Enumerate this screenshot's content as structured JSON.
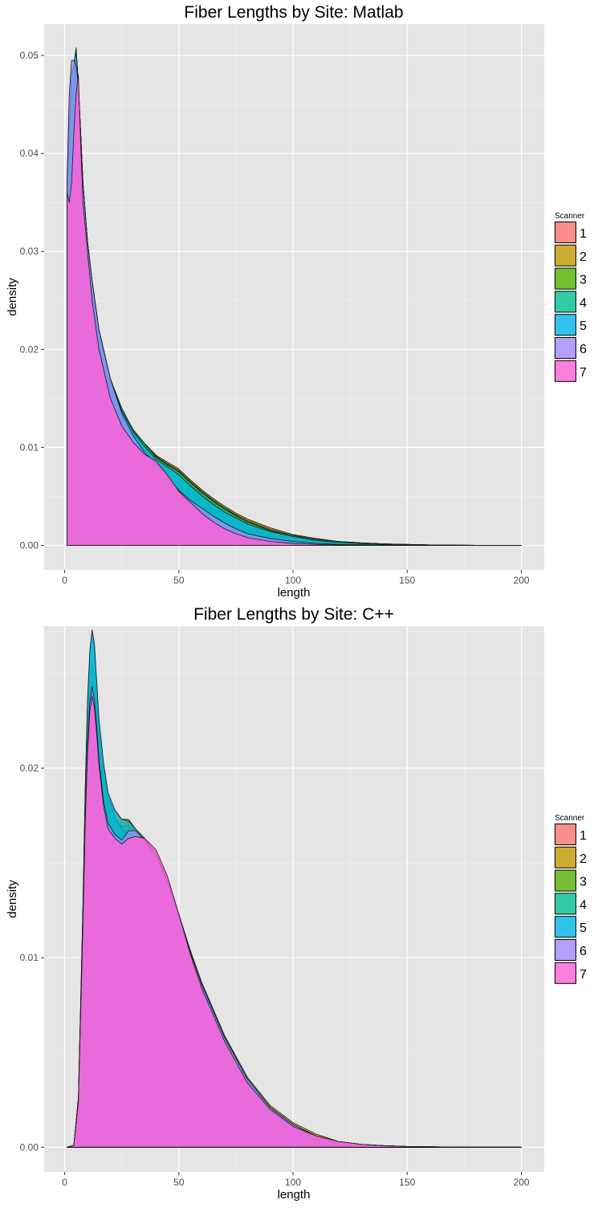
{
  "chart_data": [
    {
      "type": "area",
      "title": "Fiber Lengths by Site: Matlab",
      "xlabel": "length",
      "ylabel": "density",
      "xlim": [
        -9,
        210
      ],
      "ylim": [
        -0.0025,
        0.0532
      ],
      "xticks": [
        0,
        50,
        100,
        150,
        200
      ],
      "xtick_labels": [
        "0",
        "50",
        "100",
        "150",
        "200"
      ],
      "yticks": [
        0.0,
        0.01,
        0.02,
        0.03,
        0.04,
        0.05
      ],
      "ytick_labels": [
        "0.00",
        "0.01",
        "0.02",
        "0.03",
        "0.04",
        "0.05"
      ],
      "grid": true,
      "legend": {
        "title": "Scanner",
        "position": "right"
      },
      "x": [
        1,
        2,
        3,
        4,
        5,
        6,
        7,
        8,
        10,
        12,
        15,
        20,
        25,
        30,
        35,
        40,
        45,
        50,
        55,
        60,
        65,
        70,
        75,
        80,
        90,
        100,
        110,
        120,
        130,
        140,
        150,
        160,
        180,
        200
      ],
      "series": [
        {
          "name": "1",
          "color": "#F8766D",
          "values": [
            0.035,
            0.043,
            0.048,
            0.049,
            0.0505,
            0.047,
            0.042,
            0.037,
            0.031,
            0.027,
            0.022,
            0.017,
            0.0138,
            0.0118,
            0.0104,
            0.0092,
            0.0084,
            0.0077,
            0.0066,
            0.0056,
            0.0047,
            0.0039,
            0.0032,
            0.0026,
            0.0017,
            0.0011,
            0.0007,
            0.0004,
            0.00025,
            0.00015,
            0.0001,
            5e-05,
            1e-05,
            0.0
          ]
        },
        {
          "name": "2",
          "color": "#C49A00",
          "values": [
            0.035,
            0.043,
            0.048,
            0.049,
            0.0508,
            0.047,
            0.042,
            0.037,
            0.031,
            0.027,
            0.022,
            0.017,
            0.0138,
            0.0118,
            0.0104,
            0.0092,
            0.0085,
            0.0078,
            0.0067,
            0.0057,
            0.0048,
            0.004,
            0.0033,
            0.0027,
            0.0018,
            0.0011,
            0.0007,
            0.0004,
            0.00025,
            0.00015,
            0.0001,
            5e-05,
            1e-05,
            0.0
          ]
        },
        {
          "name": "3",
          "color": "#53B400",
          "values": [
            0.035,
            0.043,
            0.048,
            0.049,
            0.0505,
            0.047,
            0.042,
            0.037,
            0.031,
            0.027,
            0.022,
            0.017,
            0.0137,
            0.0117,
            0.0103,
            0.0091,
            0.0083,
            0.0076,
            0.0065,
            0.0055,
            0.0046,
            0.0038,
            0.0031,
            0.0025,
            0.0016,
            0.001,
            0.0006,
            0.0004,
            0.00025,
            0.00015,
            0.0001,
            5e-05,
            1e-05,
            0.0
          ]
        },
        {
          "name": "4",
          "color": "#00C094",
          "values": [
            0.035,
            0.043,
            0.048,
            0.049,
            0.0505,
            0.047,
            0.042,
            0.037,
            0.031,
            0.027,
            0.022,
            0.017,
            0.014,
            0.0118,
            0.0104,
            0.009,
            0.0082,
            0.0075,
            0.0064,
            0.0054,
            0.0045,
            0.0037,
            0.003,
            0.0024,
            0.0015,
            0.001,
            0.0006,
            0.0004,
            0.00025,
            0.00015,
            0.0001,
            5e-05,
            1e-05,
            0.0
          ]
        },
        {
          "name": "5",
          "color": "#00B6EB",
          "values": [
            0.035,
            0.043,
            0.048,
            0.049,
            0.0505,
            0.047,
            0.042,
            0.037,
            0.031,
            0.027,
            0.022,
            0.017,
            0.0137,
            0.0116,
            0.0101,
            0.0088,
            0.008,
            0.0072,
            0.0061,
            0.0051,
            0.0042,
            0.0034,
            0.0028,
            0.0022,
            0.0014,
            0.0009,
            0.0005,
            0.0003,
            0.0002,
            0.0001,
            7e-05,
            4e-05,
            1e-05,
            0.0
          ]
        },
        {
          "name": "6",
          "color": "#A58AFF",
          "values": [
            0.037,
            0.046,
            0.0495,
            0.0495,
            0.049,
            0.047,
            0.042,
            0.037,
            0.031,
            0.027,
            0.022,
            0.017,
            0.0135,
            0.0112,
            0.0095,
            0.0083,
            0.007,
            0.0056,
            0.0046,
            0.0038,
            0.003,
            0.0023,
            0.0017,
            0.0012,
            0.0007,
            0.0004,
            0.0002,
            0.0001,
            7e-05,
            4e-05,
            2e-05,
            1e-05,
            0.0,
            0.0
          ]
        },
        {
          "name": "7",
          "color": "#FB61D7",
          "values": [
            0.036,
            0.035,
            0.037,
            0.042,
            0.046,
            0.048,
            0.041,
            0.035,
            0.03,
            0.025,
            0.02,
            0.015,
            0.0122,
            0.0105,
            0.0093,
            0.0086,
            0.0072,
            0.0055,
            0.0044,
            0.0033,
            0.0024,
            0.0017,
            0.0012,
            0.0008,
            0.0004,
            0.0002,
            0.0001,
            5e-05,
            2e-05,
            1e-05,
            0.0,
            0.0,
            0.0,
            0.0
          ]
        }
      ]
    },
    {
      "type": "area",
      "title": "Fiber Lengths by Site: C++",
      "xlabel": "length",
      "ylabel": "density",
      "xlim": [
        -9,
        210
      ],
      "ylim": [
        -0.0013,
        0.0275
      ],
      "xticks": [
        0,
        50,
        100,
        150,
        200
      ],
      "xtick_labels": [
        "0",
        "50",
        "100",
        "150",
        "200"
      ],
      "yticks": [
        0.0,
        0.01,
        0.02
      ],
      "ytick_labels": [
        "0.00",
        "0.01",
        "0.02"
      ],
      "grid": true,
      "legend": {
        "title": "Scanner",
        "position": "right"
      },
      "x": [
        1,
        4,
        6,
        8,
        9,
        10,
        11,
        12,
        13,
        14,
        15,
        17,
        19,
        22,
        25,
        28,
        31,
        35,
        40,
        45,
        50,
        55,
        60,
        70,
        80,
        90,
        100,
        110,
        120,
        130,
        140,
        150,
        160,
        180,
        200
      ],
      "series": [
        {
          "name": "1",
          "color": "#F8766D",
          "values": [
            0,
            0.0001,
            0.0025,
            0.012,
            0.017,
            0.021,
            0.0235,
            0.0241,
            0.0236,
            0.0225,
            0.021,
            0.0193,
            0.018,
            0.0172,
            0.017,
            0.0172,
            0.0168,
            0.0163,
            0.0155,
            0.014,
            0.0122,
            0.0103,
            0.0086,
            0.0058,
            0.0036,
            0.0021,
            0.0012,
            0.0006,
            0.0003,
            0.00015,
            8e-05,
            4e-05,
            2e-05,
            0.0,
            0.0
          ]
        },
        {
          "name": "2",
          "color": "#C49A00",
          "values": [
            0,
            0.0001,
            0.0026,
            0.0125,
            0.0185,
            0.0225,
            0.0248,
            0.0255,
            0.025,
            0.0235,
            0.0218,
            0.0198,
            0.0185,
            0.0177,
            0.0173,
            0.0173,
            0.0168,
            0.0163,
            0.0155,
            0.0141,
            0.0123,
            0.0104,
            0.0087,
            0.0059,
            0.0037,
            0.0022,
            0.0013,
            0.0007,
            0.0003,
            0.00015,
            8e-05,
            4e-05,
            2e-05,
            0.0,
            0.0
          ]
        },
        {
          "name": "3",
          "color": "#53B400",
          "values": [
            0,
            0.0001,
            0.0025,
            0.012,
            0.0175,
            0.0215,
            0.024,
            0.0245,
            0.024,
            0.0228,
            0.0212,
            0.0194,
            0.018,
            0.0172,
            0.0169,
            0.017,
            0.0167,
            0.0162,
            0.0154,
            0.014,
            0.0122,
            0.0103,
            0.0086,
            0.0058,
            0.0036,
            0.0021,
            0.0012,
            0.0006,
            0.0003,
            0.00015,
            8e-05,
            4e-05,
            2e-05,
            0.0,
            0.0
          ]
        },
        {
          "name": "4",
          "color": "#00C094",
          "values": [
            0,
            0.0001,
            0.0026,
            0.0128,
            0.019,
            0.0235,
            0.026,
            0.0272,
            0.0265,
            0.0245,
            0.0225,
            0.0202,
            0.0185,
            0.0174,
            0.0168,
            0.0165,
            0.0164,
            0.0161,
            0.0154,
            0.014,
            0.0122,
            0.0103,
            0.0086,
            0.0058,
            0.0036,
            0.0021,
            0.0012,
            0.0006,
            0.0003,
            0.00015,
            8e-05,
            4e-05,
            2e-05,
            0.0,
            0.0
          ]
        },
        {
          "name": "5",
          "color": "#00B6EB",
          "values": [
            0,
            0.0001,
            0.0026,
            0.0128,
            0.019,
            0.0236,
            0.0262,
            0.0273,
            0.0266,
            0.0246,
            0.0226,
            0.0203,
            0.0187,
            0.0178,
            0.0173,
            0.0172,
            0.0168,
            0.0163,
            0.0155,
            0.014,
            0.0122,
            0.0103,
            0.0086,
            0.0058,
            0.0036,
            0.0021,
            0.0012,
            0.0006,
            0.0003,
            0.00015,
            8e-05,
            4e-05,
            2e-05,
            0.0,
            0.0
          ]
        },
        {
          "name": "6",
          "color": "#A58AFF",
          "values": [
            0,
            0.0001,
            0.0025,
            0.012,
            0.0175,
            0.0213,
            0.0235,
            0.0243,
            0.0236,
            0.0222,
            0.0205,
            0.0183,
            0.0171,
            0.0165,
            0.0162,
            0.0167,
            0.0167,
            0.0162,
            0.0154,
            0.014,
            0.0122,
            0.0103,
            0.0086,
            0.0058,
            0.0036,
            0.0021,
            0.0012,
            0.0006,
            0.0003,
            0.00015,
            8e-05,
            4e-05,
            2e-05,
            0.0,
            0.0
          ]
        },
        {
          "name": "7",
          "color": "#FB61D7",
          "values": [
            0,
            0.0001,
            0.0024,
            0.0118,
            0.0172,
            0.0208,
            0.023,
            0.0238,
            0.0232,
            0.0218,
            0.0202,
            0.018,
            0.0168,
            0.0163,
            0.016,
            0.0163,
            0.0164,
            0.0163,
            0.0157,
            0.0143,
            0.0123,
            0.0102,
            0.0084,
            0.0056,
            0.0034,
            0.002,
            0.0011,
            0.0006,
            0.0003,
            0.00015,
            8e-05,
            4e-05,
            2e-05,
            0.0,
            0.0
          ]
        }
      ]
    }
  ]
}
